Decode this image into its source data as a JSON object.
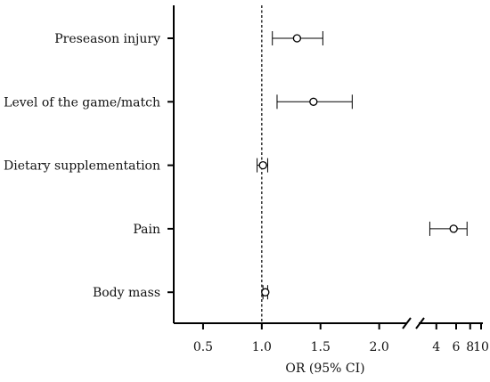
{
  "chart_data": {
    "type": "forest",
    "xlabel": "OR (95% CI)",
    "reference_line": 1.0,
    "x_ticks_left": [
      "0.5",
      "1.0",
      "1.5",
      "2.0"
    ],
    "x_ticks_right": [
      "4",
      "6",
      "8",
      "10"
    ],
    "axis_break": true,
    "rows": [
      {
        "label": "Preseason injury",
        "or": 1.3,
        "lo": 1.09,
        "hi": 1.52
      },
      {
        "label": "Level of the game/match",
        "or": 1.44,
        "lo": 1.13,
        "hi": 1.77
      },
      {
        "label": "Dietary supplementation",
        "or": 1.01,
        "lo": 0.96,
        "hi": 1.05
      },
      {
        "label": "Pain",
        "or": 5.7,
        "lo": 3.5,
        "hi": 7.5
      },
      {
        "label": "Body mass",
        "or": 1.03,
        "lo": 1.01,
        "hi": 1.05
      }
    ]
  }
}
